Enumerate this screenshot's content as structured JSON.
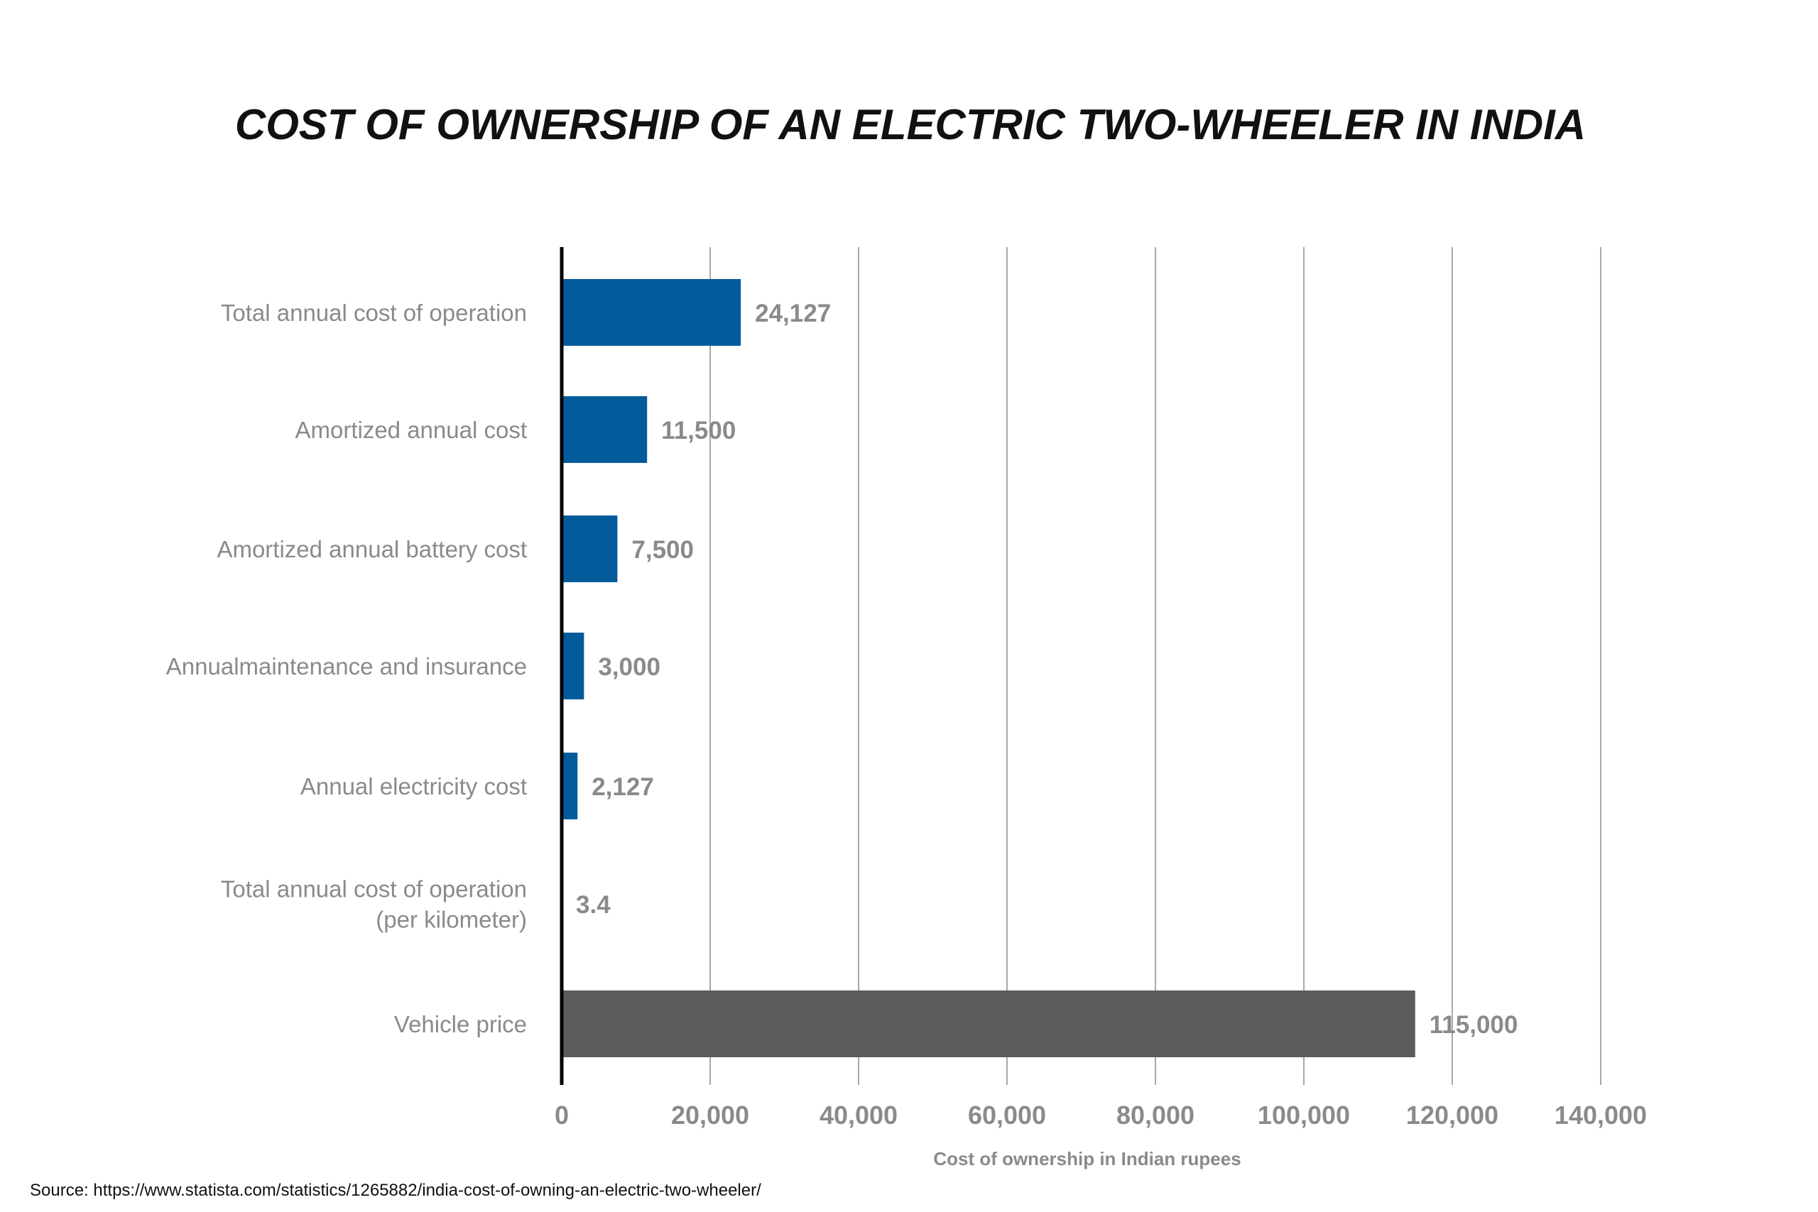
{
  "chart_data": {
    "type": "bar",
    "orientation": "horizontal",
    "title": "COST OF OWNERSHIP OF AN ELECTRIC TWO-WHEELER IN INDIA",
    "xlabel": "Cost of ownership in Indian rupees",
    "ylabel": "",
    "xlim": [
      0,
      140000
    ],
    "xticks": [
      0,
      20000,
      40000,
      60000,
      80000,
      100000,
      120000,
      140000
    ],
    "xtick_labels": [
      "0",
      "20,000",
      "40,000",
      "60,000",
      "80,000",
      "100,000",
      "120,000",
      "140,000"
    ],
    "grid": "vertical",
    "categories": [
      [
        "Total annual cost of operation"
      ],
      [
        "Amortized annual cost"
      ],
      [
        "Amortized annual battery cost"
      ],
      [
        "Annualmaintenance and insurance"
      ],
      [
        "Annual electricity cost"
      ],
      [
        "Total annual cost of operation",
        "(per kilometer)"
      ],
      [
        "Vehicle price"
      ]
    ],
    "values": [
      24127,
      11500,
      7500,
      3000,
      2127,
      3.4,
      115000
    ],
    "value_labels": [
      "24,127",
      "11,500",
      "7,500",
      "3,000",
      "2,127",
      "3.4",
      "115,000"
    ],
    "bar_colors": [
      "#045b9c",
      "#045b9c",
      "#045b9c",
      "#045b9c",
      "#045b9c",
      "#045b9c",
      "#5b5b5b"
    ],
    "source": "Source: https://www.statista.com/statistics/1265882/india-cost-of-owning-an-electric-two-wheeler/"
  },
  "colors": {
    "gridline": "#a8a8a8",
    "axis": "#000000",
    "label": "#8a8a8a"
  }
}
